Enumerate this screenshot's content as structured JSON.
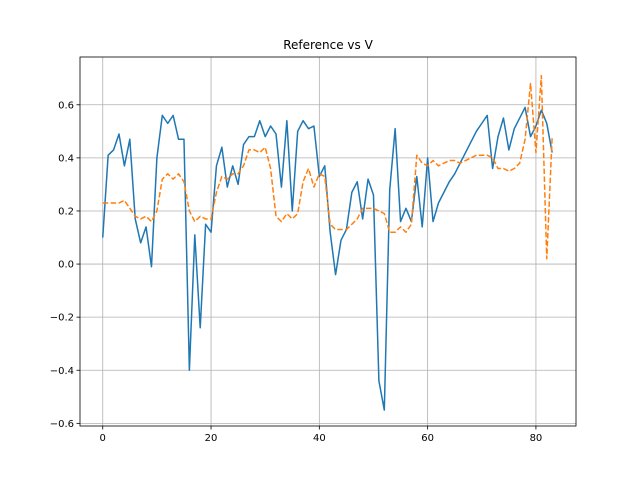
{
  "chart_data": {
    "type": "line",
    "title": "Reference vs V",
    "xlabel": "",
    "ylabel": "",
    "xlim": [
      -4.2,
      87.4
    ],
    "ylim": [
      -0.61,
      0.78
    ],
    "xticks": [
      0,
      20,
      40,
      60,
      80
    ],
    "yticks": [
      -0.6,
      -0.4,
      -0.2,
      0.0,
      0.2,
      0.4,
      0.6
    ],
    "ytick_labels": [
      "−0.6",
      "−0.4",
      "−0.2",
      "0.0",
      "0.2",
      "0.4",
      "0.6"
    ],
    "grid": true,
    "colors": {
      "series1": "#1f77b4",
      "series2": "#ff7f0e"
    },
    "series": [
      {
        "style": "solid",
        "x": [
          0,
          1,
          2,
          3,
          4,
          5,
          6,
          7,
          8,
          9,
          10,
          11,
          12,
          13,
          14,
          15,
          16,
          17,
          18,
          19,
          20,
          21,
          22,
          23,
          24,
          25,
          26,
          27,
          28,
          29,
          30,
          31,
          32,
          33,
          34,
          35,
          36,
          37,
          38,
          39,
          40,
          41,
          42,
          43,
          44,
          45,
          46,
          47,
          48,
          49,
          50,
          51,
          52,
          53,
          54,
          55,
          56,
          57,
          58,
          59,
          60,
          61,
          62,
          63,
          64,
          65,
          66,
          67,
          68,
          69,
          70,
          71,
          72,
          73,
          74,
          75,
          76,
          77,
          78,
          79,
          80,
          81,
          82,
          83
        ],
        "values": [
          0.1,
          0.41,
          0.43,
          0.49,
          0.37,
          0.47,
          0.17,
          0.08,
          0.14,
          -0.01,
          0.4,
          0.56,
          0.53,
          0.56,
          0.47,
          0.47,
          -0.4,
          0.11,
          -0.24,
          0.15,
          0.12,
          0.37,
          0.44,
          0.29,
          0.37,
          0.3,
          0.45,
          0.48,
          0.48,
          0.54,
          0.48,
          0.52,
          0.49,
          0.29,
          0.54,
          0.2,
          0.5,
          0.54,
          0.51,
          0.52,
          0.33,
          0.37,
          0.12,
          -0.04,
          0.09,
          0.13,
          0.27,
          0.31,
          0.17,
          0.32,
          0.26,
          -0.44,
          -0.55,
          0.28,
          0.51,
          0.16,
          0.21,
          0.16,
          0.33,
          0.14,
          0.4,
          0.16,
          0.23,
          0.27,
          0.31,
          0.34,
          0.38,
          0.42,
          0.46,
          0.5,
          0.53,
          0.56,
          0.36,
          0.48,
          0.55,
          0.43,
          0.51,
          0.55,
          0.59,
          0.48,
          0.52,
          0.58,
          0.53,
          0.42
        ]
      },
      {
        "style": "dashed",
        "x": [
          0,
          1,
          2,
          3,
          4,
          5,
          6,
          7,
          8,
          9,
          10,
          11,
          12,
          13,
          14,
          15,
          16,
          17,
          18,
          19,
          20,
          21,
          22,
          23,
          24,
          25,
          26,
          27,
          28,
          29,
          30,
          31,
          32,
          33,
          34,
          35,
          36,
          37,
          38,
          39,
          40,
          41,
          42,
          43,
          44,
          45,
          46,
          47,
          48,
          49,
          50,
          51,
          52,
          53,
          54,
          55,
          56,
          57,
          58,
          59,
          60,
          61,
          62,
          63,
          64,
          65,
          66,
          67,
          68,
          69,
          70,
          71,
          72,
          73,
          74,
          75,
          76,
          77,
          78,
          79,
          80,
          81,
          82,
          83
        ],
        "values": [
          0.23,
          0.23,
          0.23,
          0.23,
          0.24,
          0.21,
          0.18,
          0.17,
          0.18,
          0.16,
          0.2,
          0.32,
          0.34,
          0.32,
          0.34,
          0.31,
          0.2,
          0.16,
          0.18,
          0.17,
          0.17,
          0.27,
          0.33,
          0.32,
          0.34,
          0.34,
          0.37,
          0.43,
          0.43,
          0.42,
          0.44,
          0.36,
          0.18,
          0.16,
          0.19,
          0.17,
          0.19,
          0.31,
          0.36,
          0.29,
          0.34,
          0.33,
          0.15,
          0.13,
          0.13,
          0.13,
          0.15,
          0.17,
          0.21,
          0.21,
          0.21,
          0.2,
          0.19,
          0.12,
          0.12,
          0.14,
          0.12,
          0.15,
          0.41,
          0.38,
          0.37,
          0.39,
          0.37,
          0.38,
          0.39,
          0.39,
          0.38,
          0.39,
          0.4,
          0.41,
          0.41,
          0.41,
          0.4,
          0.36,
          0.36,
          0.35,
          0.36,
          0.38,
          0.47,
          0.68,
          0.42,
          0.71,
          0.02,
          0.48
        ]
      }
    ]
  }
}
